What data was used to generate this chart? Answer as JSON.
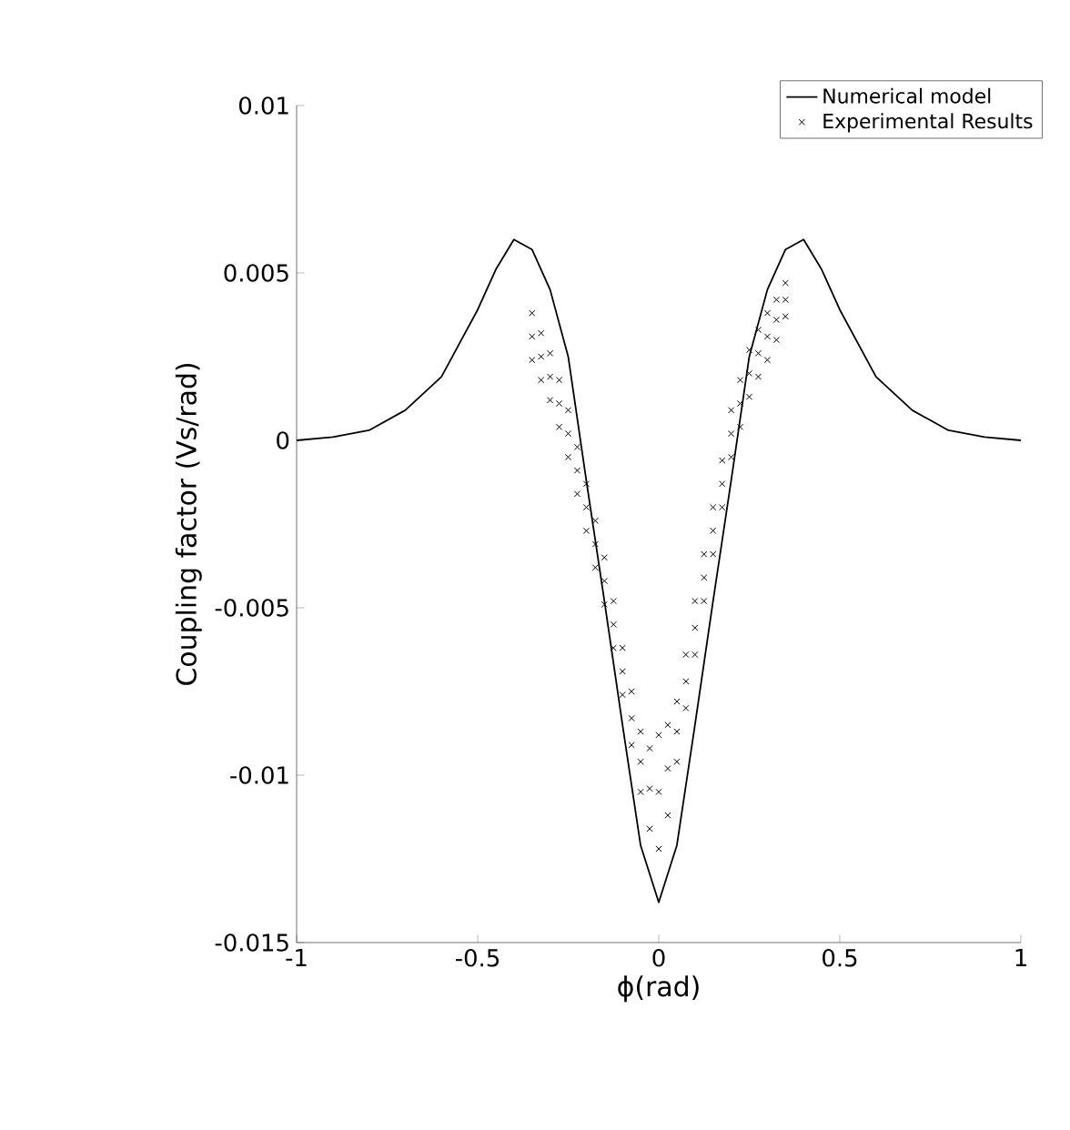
{
  "chart_data": {
    "type": "line",
    "xlabel": "ϕ(rad)",
    "ylabel": "Coupling factor (Vs/rad)",
    "xlim": [
      -1,
      1
    ],
    "ylim": [
      -0.015,
      0.01
    ],
    "xticks": [
      -1,
      -0.5,
      0,
      0.5,
      1
    ],
    "yticks": [
      -0.015,
      -0.01,
      -0.005,
      0,
      0.005,
      0.01
    ],
    "legend": "top right",
    "grid": false,
    "series": [
      {
        "name": "Numerical model",
        "color": "#000000",
        "line_style": "solid",
        "marker": "none",
        "x": [
          -1,
          -0.9,
          -0.8,
          -0.7,
          -0.6,
          -0.5,
          -0.45,
          -0.4,
          -0.35,
          -0.3,
          -0.25,
          -0.2,
          -0.15,
          -0.1,
          -0.05,
          0,
          0.05,
          0.1,
          0.15,
          0.2,
          0.25,
          0.3,
          0.35,
          0.4,
          0.45,
          0.5,
          0.6,
          0.7,
          0.8,
          0.9,
          1
        ],
        "values": [
          0,
          0.0001,
          0.0003,
          0.0009,
          0.0019,
          0.0039,
          0.0051,
          0.006,
          0.0057,
          0.0045,
          0.0025,
          -0.0012,
          -0.0048,
          -0.0085,
          -0.0121,
          -0.0138,
          -0.0121,
          -0.0085,
          -0.0048,
          -0.0012,
          0.0025,
          0.0045,
          0.0057,
          0.006,
          0.0051,
          0.0039,
          0.0019,
          0.0009,
          0.0003,
          0.0001,
          0
        ]
      },
      {
        "name": "Experimental Results",
        "type": "scatter",
        "color": "#000000",
        "marker": "cross",
        "x": [
          -0.35,
          -0.35,
          -0.35,
          -0.325,
          -0.325,
          -0.325,
          -0.3,
          -0.3,
          -0.3,
          -0.275,
          -0.275,
          -0.275,
          -0.25,
          -0.25,
          -0.25,
          -0.225,
          -0.225,
          -0.225,
          -0.2,
          -0.2,
          -0.2,
          -0.175,
          -0.175,
          -0.175,
          -0.15,
          -0.15,
          -0.15,
          -0.125,
          -0.125,
          -0.125,
          -0.1,
          -0.1,
          -0.1,
          -0.075,
          -0.075,
          -0.075,
          -0.05,
          -0.05,
          -0.05,
          -0.025,
          -0.025,
          -0.025,
          0,
          0,
          0,
          0.025,
          0.025,
          0.025,
          0.05,
          0.05,
          0.05,
          0.075,
          0.075,
          0.075,
          0.1,
          0.1,
          0.1,
          0.125,
          0.125,
          0.125,
          0.15,
          0.15,
          0.15,
          0.175,
          0.175,
          0.175,
          0.2,
          0.2,
          0.2,
          0.225,
          0.225,
          0.225,
          0.25,
          0.25,
          0.25,
          0.275,
          0.275,
          0.275,
          0.3,
          0.3,
          0.3,
          0.325,
          0.325,
          0.325,
          0.35,
          0.35,
          0.35
        ],
        "values": [
          0.0038,
          0.0031,
          0.0024,
          0.0032,
          0.0025,
          0.0018,
          0.0026,
          0.0019,
          0.0012,
          0.0018,
          0.0011,
          0.0004,
          0.0009,
          0.0002,
          -0.0005,
          -0.0002,
          -0.0009,
          -0.0016,
          -0.0013,
          -0.002,
          -0.0027,
          -0.0024,
          -0.0031,
          -0.0038,
          -0.0035,
          -0.0042,
          -0.0049,
          -0.0048,
          -0.0055,
          -0.0062,
          -0.0062,
          -0.0069,
          -0.0076,
          -0.0075,
          -0.0083,
          -0.0091,
          -0.0087,
          -0.0096,
          -0.0105,
          -0.0092,
          -0.0104,
          -0.0116,
          -0.0088,
          -0.0105,
          -0.0122,
          -0.0085,
          -0.0098,
          -0.0112,
          -0.0078,
          -0.0087,
          -0.0096,
          -0.0064,
          -0.0072,
          -0.008,
          -0.0048,
          -0.0056,
          -0.0064,
          -0.0034,
          -0.0041,
          -0.0048,
          -0.002,
          -0.0027,
          -0.0034,
          -0.0006,
          -0.0013,
          -0.002,
          0.0009,
          0.0002,
          -0.0005,
          0.0018,
          0.0011,
          0.0004,
          0.0027,
          0.002,
          0.0013,
          0.0033,
          0.0026,
          0.0019,
          0.0038,
          0.0031,
          0.0024,
          0.0042,
          0.0036,
          0.003,
          0.0047,
          0.0042,
          0.0037
        ]
      }
    ]
  }
}
